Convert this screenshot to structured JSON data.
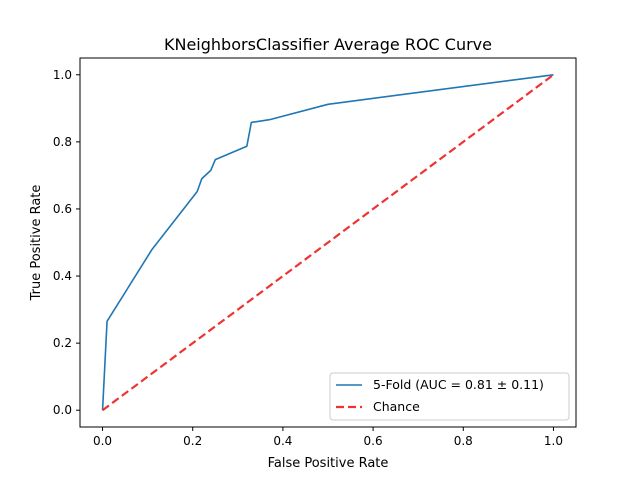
{
  "chart_data": {
    "type": "line",
    "title": "KNeighborsClassifier Average ROC Curve",
    "xlabel": "False Positive Rate",
    "ylabel": "True Positive Rate",
    "xlim": [
      -0.05,
      1.05
    ],
    "ylim": [
      -0.05,
      1.05
    ],
    "xticks": [
      0.0,
      0.2,
      0.4,
      0.6,
      0.8,
      1.0
    ],
    "xtick_labels": [
      "0.0",
      "0.2",
      "0.4",
      "0.6",
      "0.8",
      "1.0"
    ],
    "yticks": [
      0.0,
      0.2,
      0.4,
      0.6,
      0.8,
      1.0
    ],
    "ytick_labels": [
      "0.0",
      "0.2",
      "0.4",
      "0.6",
      "0.8",
      "1.0"
    ],
    "grid": false,
    "legend_position": "lower-right",
    "series": [
      {
        "name": "5-Fold (AUC = 0.81 ± 0.11)",
        "color": "#1f77b4",
        "style": "solid",
        "x": [
          0.0,
          0.01,
          0.11,
          0.21,
          0.22,
          0.24,
          0.25,
          0.32,
          0.33,
          0.37,
          0.5,
          1.0
        ],
        "y": [
          0.0,
          0.265,
          0.48,
          0.652,
          0.69,
          0.715,
          0.747,
          0.787,
          0.858,
          0.866,
          0.912,
          1.0
        ]
      },
      {
        "name": "Chance",
        "color": "#ee3333",
        "style": "dashed",
        "x": [
          0.0,
          1.0
        ],
        "y": [
          0.0,
          1.0
        ]
      }
    ]
  }
}
